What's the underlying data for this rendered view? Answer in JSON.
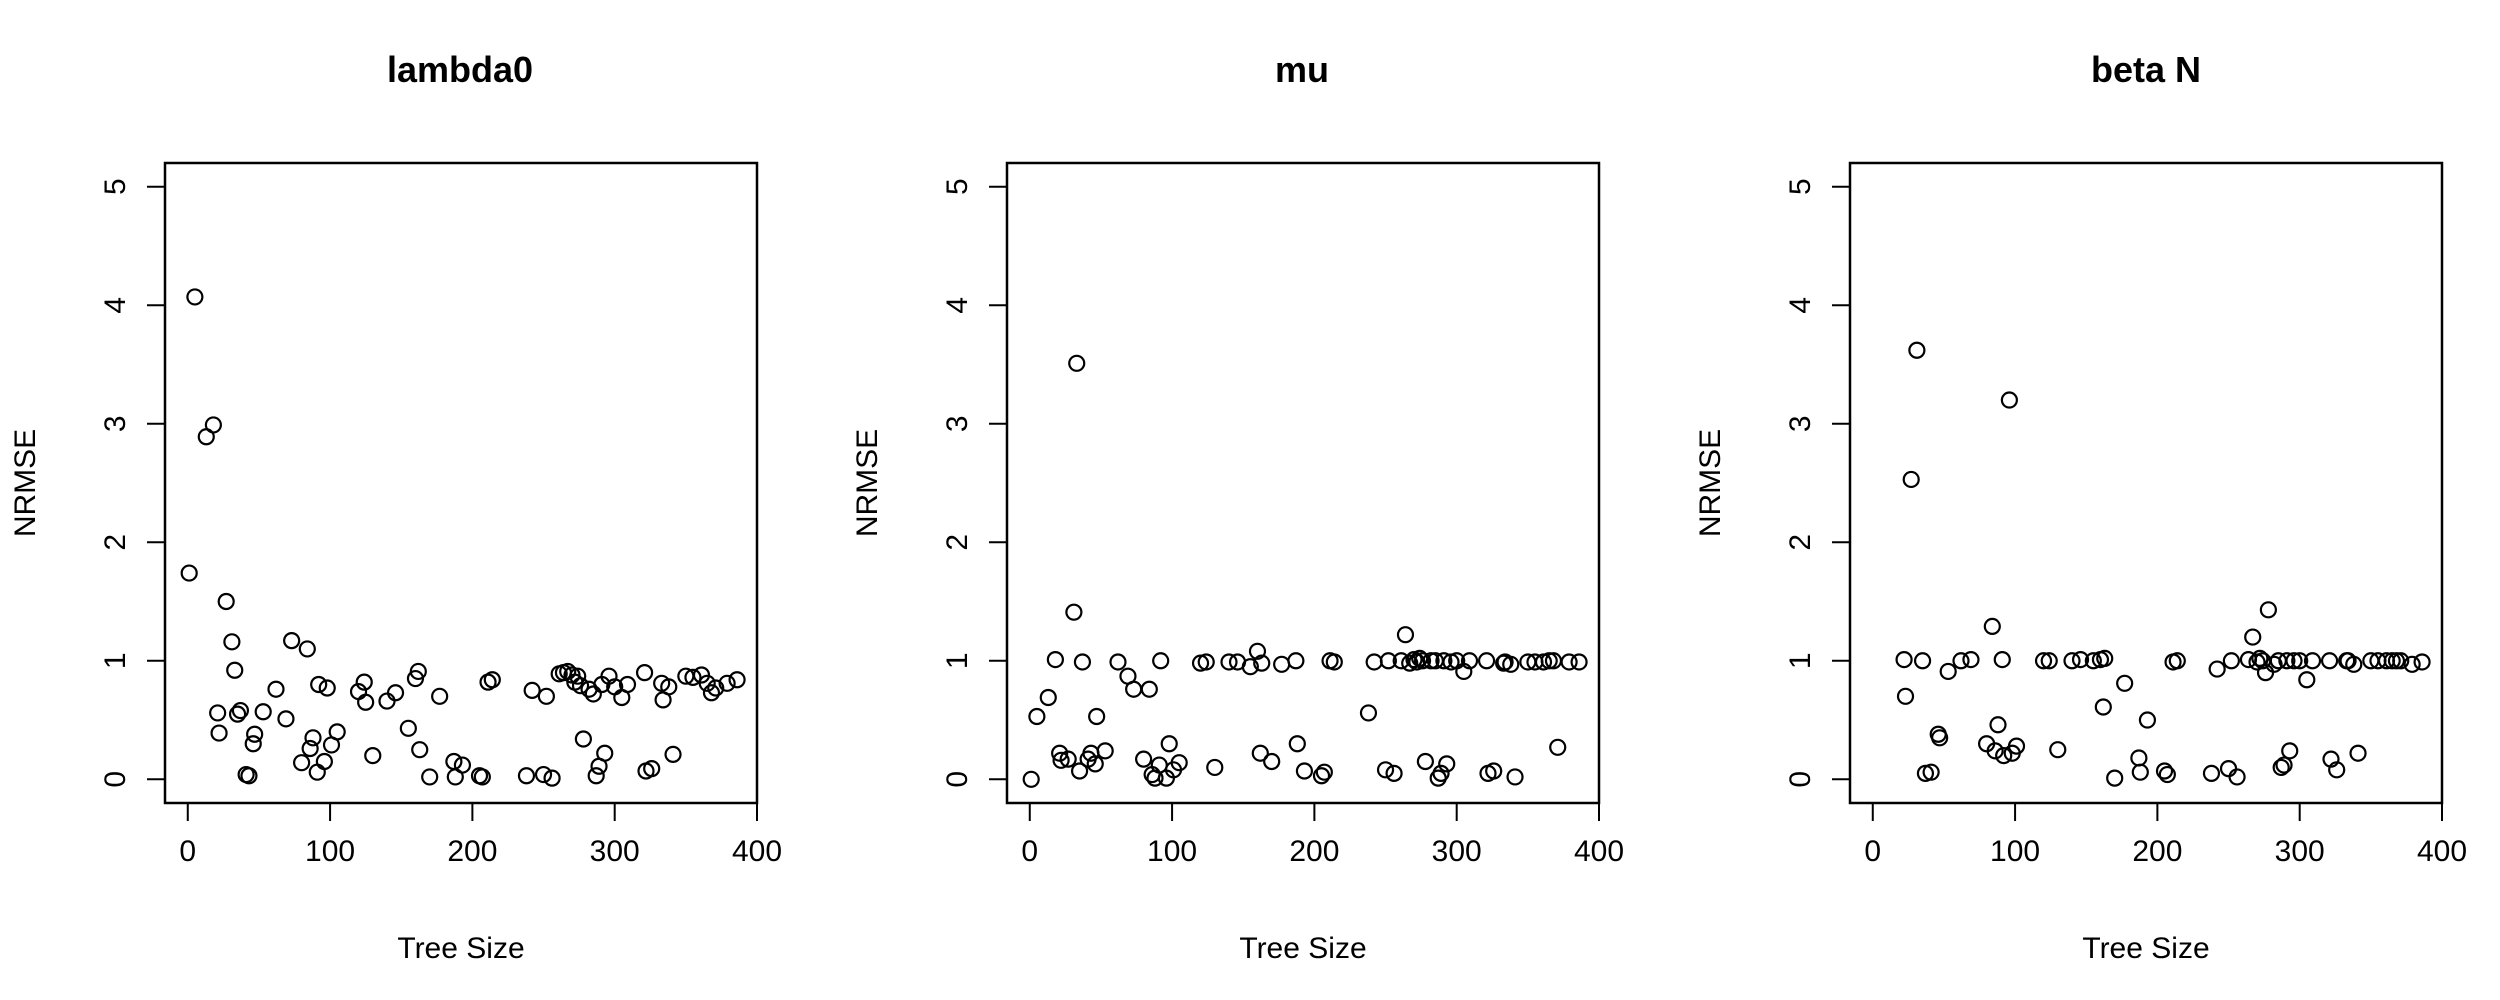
{
  "chart_data": [
    {
      "type": "scatter",
      "title": "lambda0",
      "xlabel": "Tree Size",
      "ylabel": "NRMSE",
      "xlim": [
        -16,
        400
      ],
      "ylim": [
        -0.2,
        5.2
      ],
      "xticks": [
        0,
        100,
        200,
        300,
        400
      ],
      "yticks": [
        0,
        1,
        2,
        3,
        4,
        5
      ],
      "grid": false,
      "marker": "open-circle",
      "points": [
        [
          1,
          1.74
        ],
        [
          5,
          4.07
        ],
        [
          13,
          2.89
        ],
        [
          18,
          2.99
        ],
        [
          21,
          0.56
        ],
        [
          22,
          0.39
        ],
        [
          27,
          1.5
        ],
        [
          31,
          1.16
        ],
        [
          33,
          0.92
        ],
        [
          35,
          0.55
        ],
        [
          37,
          0.58
        ],
        [
          41,
          0.04
        ],
        [
          43,
          0.03
        ],
        [
          46,
          0.3
        ],
        [
          47,
          0.38
        ],
        [
          53,
          0.57
        ],
        [
          62,
          0.76
        ],
        [
          69,
          0.51
        ],
        [
          73,
          1.17
        ],
        [
          80,
          0.14
        ],
        [
          84,
          1.1
        ],
        [
          86,
          0.26
        ],
        [
          88,
          0.35
        ],
        [
          91,
          0.06
        ],
        [
          92,
          0.8
        ],
        [
          96,
          0.15
        ],
        [
          98,
          0.77
        ],
        [
          101,
          0.29
        ],
        [
          105,
          0.4
        ],
        [
          120,
          0.74
        ],
        [
          124,
          0.82
        ],
        [
          125,
          0.65
        ],
        [
          130,
          0.2
        ],
        [
          140,
          0.66
        ],
        [
          146,
          0.73
        ],
        [
          155,
          0.43
        ],
        [
          160,
          0.85
        ],
        [
          162,
          0.91
        ],
        [
          163,
          0.25
        ],
        [
          170,
          0.02
        ],
        [
          177,
          0.7
        ],
        [
          187,
          0.15
        ],
        [
          188,
          0.02
        ],
        [
          193,
          0.12
        ],
        [
          205,
          0.03
        ],
        [
          207,
          0.02
        ],
        [
          211,
          0.82
        ],
        [
          214,
          0.84
        ],
        [
          238,
          0.03
        ],
        [
          242,
          0.75
        ],
        [
          250,
          0.04
        ],
        [
          252,
          0.7
        ],
        [
          256,
          0.01
        ],
        [
          261,
          0.89
        ],
        [
          264,
          0.9
        ],
        [
          267,
          0.91
        ],
        [
          270,
          0.88
        ],
        [
          272,
          0.82
        ],
        [
          274,
          0.87
        ],
        [
          276,
          0.79
        ],
        [
          278,
          0.34
        ],
        [
          282,
          0.76
        ],
        [
          285,
          0.72
        ],
        [
          287,
          0.03
        ],
        [
          289,
          0.11
        ],
        [
          291,
          0.8
        ],
        [
          293,
          0.22
        ],
        [
          296,
          0.87
        ],
        [
          300,
          0.78
        ],
        [
          305,
          0.69
        ],
        [
          309,
          0.8
        ],
        [
          321,
          0.9
        ],
        [
          322,
          0.07
        ],
        [
          326,
          0.09
        ],
        [
          333,
          0.81
        ],
        [
          334,
          0.67
        ],
        [
          338,
          0.78
        ],
        [
          341,
          0.21
        ],
        [
          350,
          0.87
        ],
        [
          355,
          0.86
        ],
        [
          361,
          0.88
        ],
        [
          365,
          0.81
        ],
        [
          368,
          0.73
        ],
        [
          371,
          0.77
        ],
        [
          379,
          0.81
        ],
        [
          386,
          0.84
        ]
      ]
    },
    {
      "type": "scatter",
      "title": "mu",
      "xlabel": "Tree Size",
      "ylabel": "NRMSE",
      "xlim": [
        -16,
        400
      ],
      "ylim": [
        -0.2,
        5.2
      ],
      "xticks": [
        0,
        100,
        200,
        300,
        400
      ],
      "yticks": [
        0,
        1,
        2,
        3,
        4,
        5
      ],
      "grid": false,
      "marker": "open-circle",
      "points": [
        [
          1,
          0.0
        ],
        [
          5,
          0.53
        ],
        [
          13,
          0.69
        ],
        [
          18,
          1.01
        ],
        [
          21,
          0.22
        ],
        [
          22,
          0.16
        ],
        [
          27,
          0.17
        ],
        [
          31,
          1.41
        ],
        [
          33,
          3.51
        ],
        [
          35,
          0.07
        ],
        [
          37,
          0.99
        ],
        [
          41,
          0.17
        ],
        [
          43,
          0.22
        ],
        [
          46,
          0.13
        ],
        [
          47,
          0.53
        ],
        [
          53,
          0.24
        ],
        [
          62,
          0.99
        ],
        [
          69,
          0.87
        ],
        [
          73,
          0.76
        ],
        [
          80,
          0.17
        ],
        [
          84,
          0.76
        ],
        [
          86,
          0.04
        ],
        [
          88,
          0.01
        ],
        [
          91,
          0.12
        ],
        [
          92,
          1.0
        ],
        [
          96,
          0.01
        ],
        [
          98,
          0.3
        ],
        [
          101,
          0.08
        ],
        [
          105,
          0.14
        ],
        [
          120,
          0.98
        ],
        [
          124,
          0.99
        ],
        [
          130,
          0.1
        ],
        [
          140,
          0.99
        ],
        [
          146,
          0.99
        ],
        [
          155,
          0.95
        ],
        [
          160,
          1.08
        ],
        [
          162,
          0.22
        ],
        [
          163,
          0.98
        ],
        [
          170,
          0.15
        ],
        [
          177,
          0.97
        ],
        [
          187,
          1.0
        ],
        [
          188,
          0.3
        ],
        [
          193,
          0.07
        ],
        [
          205,
          0.03
        ],
        [
          207,
          0.06
        ],
        [
          211,
          1.0
        ],
        [
          214,
          0.99
        ],
        [
          238,
          0.56
        ],
        [
          242,
          0.99
        ],
        [
          250,
          0.08
        ],
        [
          252,
          1.0
        ],
        [
          256,
          0.05
        ],
        [
          261,
          1.0
        ],
        [
          264,
          1.22
        ],
        [
          267,
          0.98
        ],
        [
          270,
          1.01
        ],
        [
          272,
          0.99
        ],
        [
          274,
          1.02
        ],
        [
          276,
          1.0
        ],
        [
          278,
          0.15
        ],
        [
          282,
          1.0
        ],
        [
          285,
          1.0
        ],
        [
          287,
          0.01
        ],
        [
          289,
          0.05
        ],
        [
          291,
          1.0
        ],
        [
          293,
          0.13
        ],
        [
          296,
          0.99
        ],
        [
          300,
          1.0
        ],
        [
          305,
          0.91
        ],
        [
          309,
          1.0
        ],
        [
          321,
          1.0
        ],
        [
          322,
          0.05
        ],
        [
          326,
          0.07
        ],
        [
          333,
          0.98
        ],
        [
          334,
          0.99
        ],
        [
          338,
          0.97
        ],
        [
          341,
          0.02
        ],
        [
          350,
          0.99
        ],
        [
          355,
          0.99
        ],
        [
          361,
          0.99
        ],
        [
          365,
          1.0
        ],
        [
          368,
          1.0
        ],
        [
          371,
          0.27
        ],
        [
          379,
          0.99
        ],
        [
          386,
          0.99
        ]
      ]
    },
    {
      "type": "scatter",
      "title": "beta N",
      "xlabel": "Tree Size",
      "ylabel": "NRMSE",
      "xlim": [
        -16,
        400
      ],
      "ylim": [
        -0.2,
        5.2
      ],
      "xticks": [
        0,
        100,
        200,
        300,
        400
      ],
      "yticks": [
        0,
        1,
        2,
        3,
        4,
        5
      ],
      "grid": false,
      "marker": "open-circle",
      "points": [
        [
          22,
          1.01
        ],
        [
          23,
          0.7
        ],
        [
          27,
          2.53
        ],
        [
          31,
          3.62
        ],
        [
          35,
          1.0
        ],
        [
          37,
          0.05
        ],
        [
          41,
          0.06
        ],
        [
          46,
          0.38
        ],
        [
          47,
          0.35
        ],
        [
          53,
          0.91
        ],
        [
          62,
          1.0
        ],
        [
          69,
          1.01
        ],
        [
          80,
          0.3
        ],
        [
          84,
          1.29
        ],
        [
          86,
          0.24
        ],
        [
          88,
          0.46
        ],
        [
          91,
          1.01
        ],
        [
          92,
          0.2
        ],
        [
          96,
          3.2
        ],
        [
          98,
          0.22
        ],
        [
          101,
          0.28
        ],
        [
          120,
          1.0
        ],
        [
          124,
          1.0
        ],
        [
          130,
          0.25
        ],
        [
          140,
          1.0
        ],
        [
          146,
          1.01
        ],
        [
          155,
          1.0
        ],
        [
          160,
          1.01
        ],
        [
          162,
          0.61
        ],
        [
          163,
          1.02
        ],
        [
          170,
          0.01
        ],
        [
          177,
          0.81
        ],
        [
          187,
          0.18
        ],
        [
          188,
          0.06
        ],
        [
          193,
          0.5
        ],
        [
          205,
          0.07
        ],
        [
          207,
          0.04
        ],
        [
          211,
          0.99
        ],
        [
          214,
          1.0
        ],
        [
          238,
          0.05
        ],
        [
          242,
          0.93
        ],
        [
          250,
          0.09
        ],
        [
          252,
          1.0
        ],
        [
          256,
          0.02
        ],
        [
          264,
          1.01
        ],
        [
          267,
          1.2
        ],
        [
          270,
          0.99
        ],
        [
          272,
          1.02
        ],
        [
          274,
          1.0
        ],
        [
          276,
          0.9
        ],
        [
          278,
          1.43
        ],
        [
          282,
          0.97
        ],
        [
          285,
          1.0
        ],
        [
          287,
          0.1
        ],
        [
          289,
          0.12
        ],
        [
          291,
          1.0
        ],
        [
          293,
          0.24
        ],
        [
          296,
          1.0
        ],
        [
          300,
          1.0
        ],
        [
          305,
          0.84
        ],
        [
          309,
          1.0
        ],
        [
          321,
          1.0
        ],
        [
          322,
          0.17
        ],
        [
          326,
          0.08
        ],
        [
          333,
          1.0
        ],
        [
          334,
          1.0
        ],
        [
          338,
          0.97
        ],
        [
          341,
          0.22
        ],
        [
          350,
          1.0
        ],
        [
          355,
          1.0
        ],
        [
          361,
          1.0
        ],
        [
          365,
          1.0
        ],
        [
          368,
          1.0
        ],
        [
          371,
          1.0
        ],
        [
          379,
          0.97
        ],
        [
          386,
          0.99
        ]
      ]
    }
  ]
}
